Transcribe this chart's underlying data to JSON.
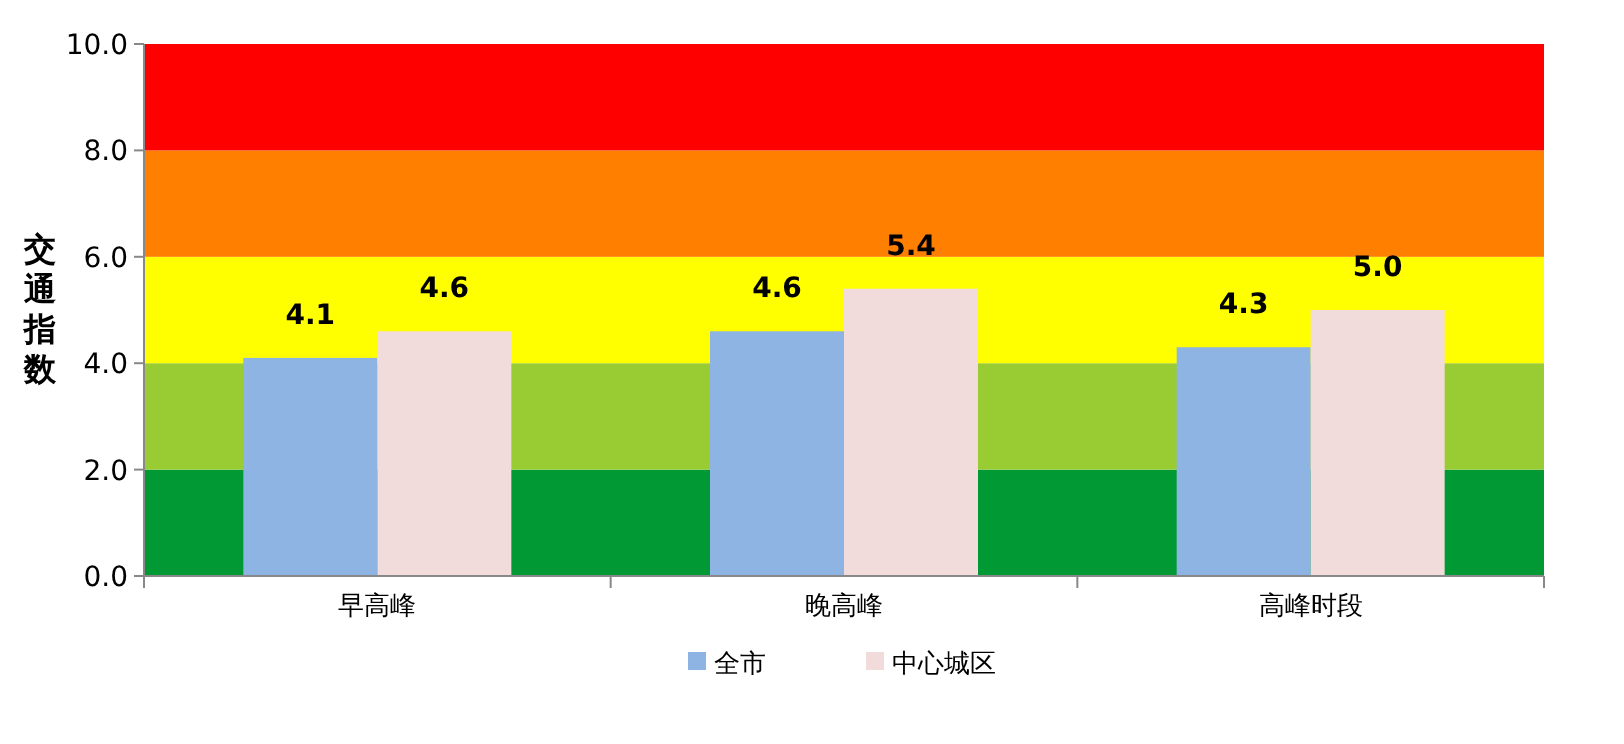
{
  "chart_data": {
    "type": "bar",
    "ylabel": "交通指数",
    "categories": [
      "早高峰",
      "晚高峰",
      "高峰时段"
    ],
    "series": [
      {
        "name": "全市",
        "color": "#8eb4e3",
        "values": [
          4.1,
          4.6,
          4.3
        ],
        "value_labels": [
          "4.1",
          "4.6",
          "4.3"
        ]
      },
      {
        "name": "中心城区",
        "color": "#f2dcdb",
        "values": [
          4.6,
          5.4,
          5.0
        ],
        "value_labels": [
          "4.6",
          "5.4",
          "5.0"
        ]
      }
    ],
    "ylim": [
      0,
      10
    ],
    "yticks": [
      {
        "value": 0,
        "label": "0.0"
      },
      {
        "value": 2,
        "label": "2.0"
      },
      {
        "value": 4,
        "label": "4.0"
      },
      {
        "value": 6,
        "label": "6.0"
      },
      {
        "value": 8,
        "label": "8.0"
      },
      {
        "value": 10,
        "label": "10.0"
      }
    ],
    "bands": [
      {
        "axis": "y",
        "from": 0,
        "to": 2,
        "color": "#009933"
      },
      {
        "axis": "y",
        "from": 2,
        "to": 4,
        "color": "#99cc33"
      },
      {
        "axis": "y",
        "from": 4,
        "to": 6,
        "color": "#ffff00"
      },
      {
        "axis": "y",
        "from": 6,
        "to": 8,
        "color": "#ff7f00"
      },
      {
        "axis": "y",
        "from": 8,
        "to": 10,
        "color": "#ff0000"
      }
    ],
    "legend": "bottom"
  }
}
